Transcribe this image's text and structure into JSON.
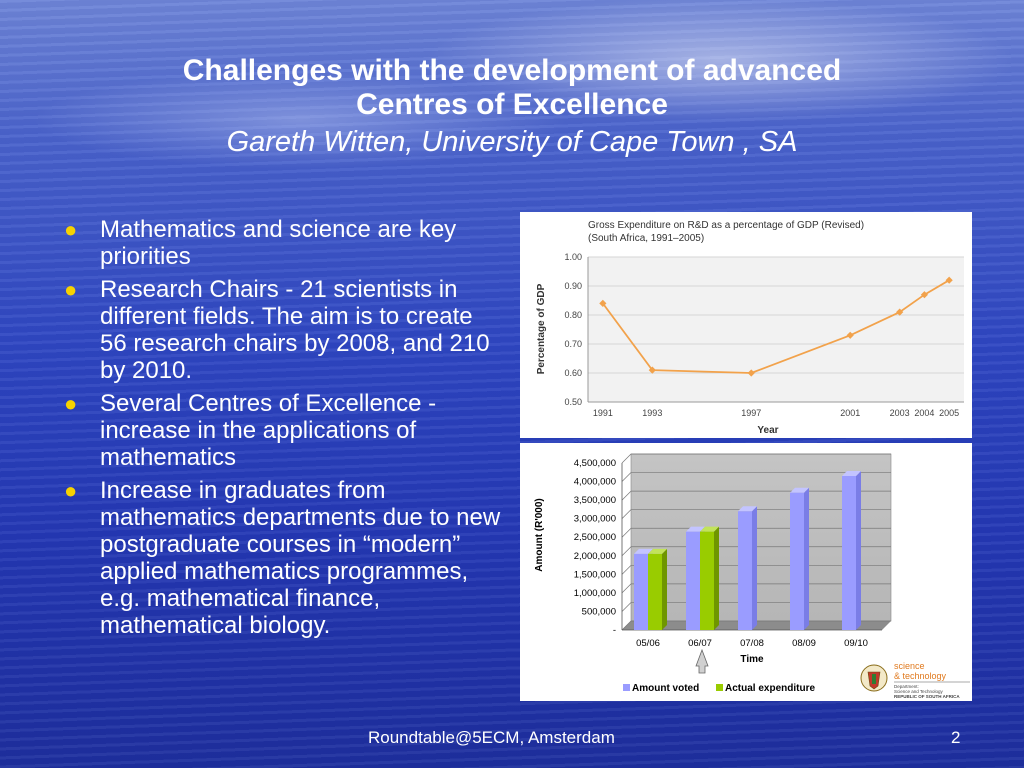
{
  "slide": {
    "title_line1": "Challenges with the development of advanced",
    "title_line2": "Centres of Excellence",
    "subtitle": "Gareth Witten, University of Cape Town , SA",
    "bullets": [
      "Mathematics and science are key priorities",
      "Research Chairs - 21 scientists in different fields. The aim is to create 56 research chairs by 2008, and 210 by 2010.",
      "Several Centres of Excellence - increase in the applications of mathematics",
      "Increase in graduates from mathematics departments due to new postgraduate courses in “modern” applied mathematics programmes, e.g. mathematical finance, mathematical biology."
    ],
    "footer_center": "Roundtable@5ECM, Amsterdam",
    "page_number": "2"
  },
  "logo": {
    "text1": "science",
    "text2": "& technology",
    "small1": "Department:",
    "small2": "Science and Technology",
    "small3": "REPUBLIC OF SOUTH AFRICA"
  },
  "chart_data": [
    {
      "type": "line",
      "title": "Gross Expenditure on R&D as a percentage of GDP (Revised)",
      "subtitle": "(South Africa, 1991–2005)",
      "xlabel": "Year",
      "ylabel": "Percentage of GDP",
      "x": [
        1991,
        1993,
        1997,
        2001,
        2003,
        2004,
        2005
      ],
      "values": [
        0.84,
        0.61,
        0.6,
        0.73,
        0.81,
        0.87,
        0.92
      ],
      "y_ticks": [
        "1.00",
        "0.90",
        "0.80",
        "0.70",
        "0.60",
        "0.50"
      ],
      "ylim": [
        0.5,
        1.0
      ],
      "color": "#f2a24b",
      "grid": "horizontal"
    },
    {
      "type": "bar",
      "categories": [
        "05/06",
        "06/07",
        "07/08",
        "08/09",
        "09/10"
      ],
      "series": [
        {
          "name": "Amount voted",
          "values": [
            2050000,
            2650000,
            3200000,
            3700000,
            4150000
          ],
          "color": "#9a9cff"
        },
        {
          "name": "Actual expenditure",
          "values": [
            2050000,
            2650000,
            null,
            null,
            null
          ],
          "color": "#99cc00"
        }
      ],
      "xlabel": "Time",
      "ylabel": "Amount (R'000)",
      "y_ticks": [
        "4,500,000",
        "4,000,000",
        "3,500,000",
        "3,000,000",
        "2,500,000",
        "2,000,000",
        "1,500,000",
        "1,000,000",
        "500,000",
        "-"
      ],
      "ylim": [
        0,
        4500000
      ],
      "legend": "bottom",
      "grid": "horizontal",
      "arrow_marks": "06/07"
    }
  ]
}
